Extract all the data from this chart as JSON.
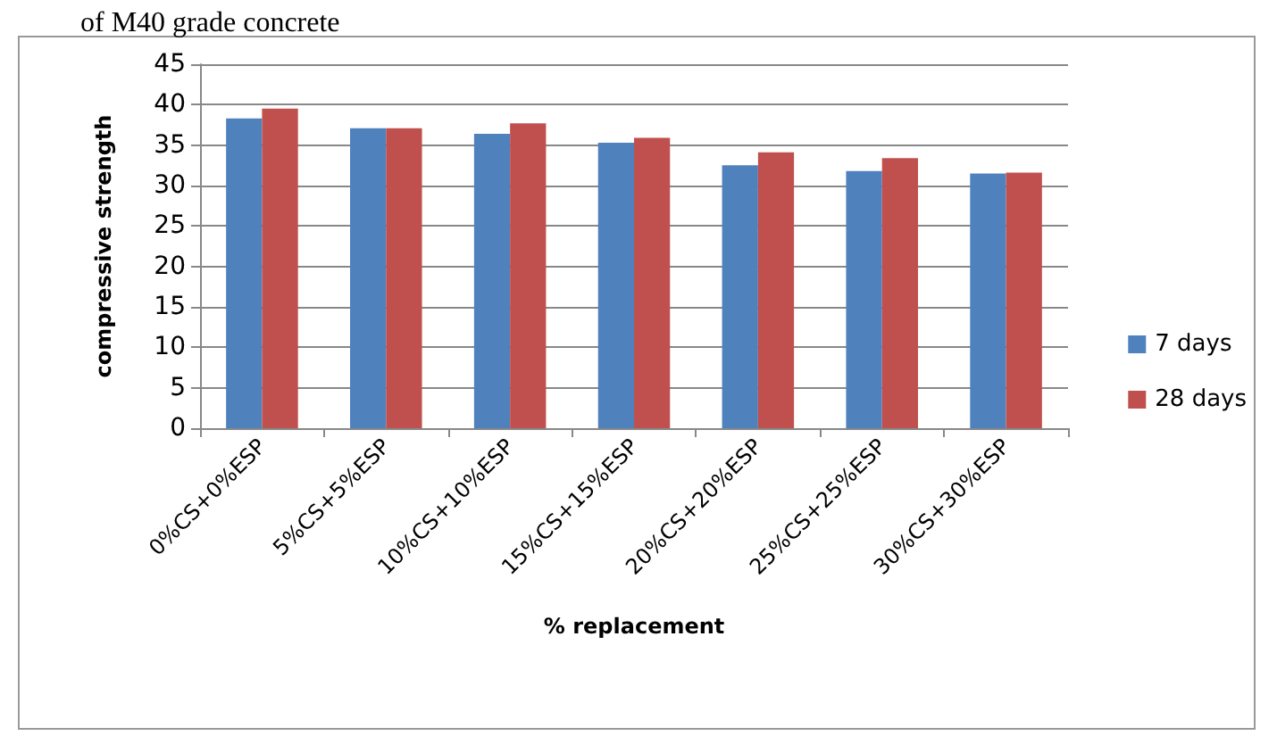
{
  "chart_data": {
    "type": "bar",
    "title": "of M40 grade concrete",
    "xlabel": "% replacement",
    "ylabel": "compressive strength",
    "categories": [
      "0%CS+0%ESP",
      "5%CS+5%ESP",
      "10%CS+10%ESP",
      "15%CS+15%ESP",
      "20%CS+20%ESP",
      "25%CS+25%ESP",
      "30%CS+30%ESP"
    ],
    "series": [
      {
        "name": "7 days",
        "color": "#4f81bd",
        "values": [
          38.3,
          37.1,
          36.4,
          35.3,
          32.5,
          31.8,
          31.5
        ]
      },
      {
        "name": "28 days",
        "color": "#c0504d",
        "values": [
          39.5,
          37.1,
          37.7,
          35.9,
          34.1,
          33.4,
          31.6
        ]
      }
    ],
    "ylim": [
      0,
      45
    ],
    "yticks": [
      0,
      5,
      10,
      15,
      20,
      25,
      30,
      35,
      40,
      45
    ],
    "grid": "y",
    "legend": "right"
  }
}
